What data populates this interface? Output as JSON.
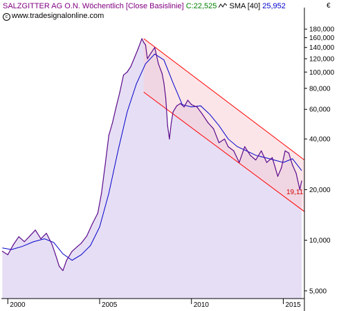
{
  "header": {
    "title": "SALZGITTER AG O.N.",
    "mode": "Wöchentlich [Close Basislinie]",
    "close_label": "C:22,525",
    "sma_label": "SMA [40]",
    "sma_value": "25,952",
    "copyright": "www.tradesignalonline.com",
    "currency": "€"
  },
  "colors": {
    "price": "#5a0a8c",
    "sma": "#0000cc",
    "area_fill": "#e6def4",
    "channel_line": "#ff0000",
    "channel_fill": "#f8d0d6",
    "title": "#800080",
    "close": "#008000"
  },
  "chart_data": {
    "type": "line",
    "scale": "log",
    "ylim": [
      4500,
      200000
    ],
    "xlim": [
      1999.65,
      2016.15
    ],
    "y_ticks": [
      5000,
      10000,
      20000,
      40000,
      60000,
      80000,
      100000,
      120000,
      140000,
      160000,
      180000
    ],
    "y_tick_labels": [
      "5,000",
      "10,000",
      "20,000",
      "40,000",
      "60,000",
      "80,000",
      "100,000",
      "120,000",
      "140,000",
      "160,000",
      "180,000"
    ],
    "x_ticks": [
      2000,
      2005,
      2010,
      2015
    ],
    "x_tick_labels": [
      "2000",
      "2005",
      "2010",
      "2015"
    ],
    "last_value_label": "19,11",
    "last_value": 19110,
    "series": [
      {
        "name": "SALZGITTER AG O.N.",
        "x": [
          1999.7,
          2000.0,
          2000.3,
          2000.6,
          2000.9,
          2001.2,
          2001.5,
          2001.8,
          2002.1,
          2002.4,
          2002.6,
          2002.8,
          2003.0,
          2003.2,
          2003.5,
          2003.8,
          2004.0,
          2004.3,
          2004.6,
          2004.9,
          2005.1,
          2005.3,
          2005.5,
          2005.7,
          2005.9,
          2006.1,
          2006.3,
          2006.5,
          2006.7,
          2006.9,
          2007.1,
          2007.3,
          2007.4,
          2007.5,
          2007.6,
          2007.8,
          2008.0,
          2008.2,
          2008.4,
          2008.5,
          2008.6,
          2008.7,
          2008.8,
          2008.9,
          2009.0,
          2009.2,
          2009.4,
          2009.6,
          2009.8,
          2010.0,
          2010.3,
          2010.6,
          2010.9,
          2011.2,
          2011.5,
          2011.8,
          2012.0,
          2012.3,
          2012.6,
          2012.9,
          2013.2,
          2013.5,
          2013.8,
          2014.1,
          2014.4,
          2014.7,
          2014.9,
          2015.1,
          2015.3,
          2015.5,
          2015.7,
          2015.9,
          2016.0
        ],
        "values": [
          8600,
          8200,
          9400,
          10500,
          9800,
          10600,
          11500,
          10200,
          11000,
          9500,
          8200,
          7000,
          6600,
          7600,
          8600,
          9200,
          9600,
          10600,
          12500,
          14500,
          19000,
          28000,
          42000,
          50000,
          62000,
          76000,
          96000,
          100000,
          108000,
          122000,
          138000,
          158000,
          150000,
          145000,
          120000,
          130000,
          140000,
          112000,
          98000,
          86000,
          70000,
          48000,
          40000,
          50000,
          58000,
          63000,
          65000,
          62000,
          68000,
          64000,
          62000,
          56000,
          50000,
          46000,
          38000,
          40000,
          36000,
          34000,
          29000,
          36000,
          32000,
          30000,
          34000,
          29000,
          31000,
          24000,
          27000,
          34000,
          33000,
          28000,
          25000,
          20000,
          22525
        ]
      },
      {
        "name": "SMA [40]",
        "x": [
          1999.7,
          2000.2,
          2000.8,
          2001.4,
          2002.0,
          2002.5,
          2003.0,
          2003.5,
          2004.0,
          2004.5,
          2005.0,
          2005.5,
          2006.0,
          2006.5,
          2007.0,
          2007.5,
          2008.0,
          2008.5,
          2009.0,
          2009.5,
          2010.0,
          2010.5,
          2011.0,
          2011.5,
          2012.0,
          2012.5,
          2013.0,
          2013.5,
          2014.0,
          2014.5,
          2015.0,
          2015.5,
          2016.0
        ],
        "values": [
          9000,
          8800,
          9200,
          9800,
          10200,
          9700,
          8300,
          7600,
          8200,
          9300,
          12000,
          19000,
          34000,
          58000,
          85000,
          112000,
          128000,
          118000,
          86000,
          64000,
          62000,
          63000,
          56000,
          48000,
          40000,
          36000,
          34000,
          32000,
          31000,
          30000,
          29000,
          30500,
          25952
        ]
      }
    ],
    "channel": {
      "upper": {
        "x": [
          2007.4,
          2016.15
        ],
        "values": [
          158000,
          30000
        ]
      },
      "lower": {
        "x": [
          2007.4,
          2016.15
        ],
        "values": [
          76000,
          14800
        ]
      }
    }
  }
}
